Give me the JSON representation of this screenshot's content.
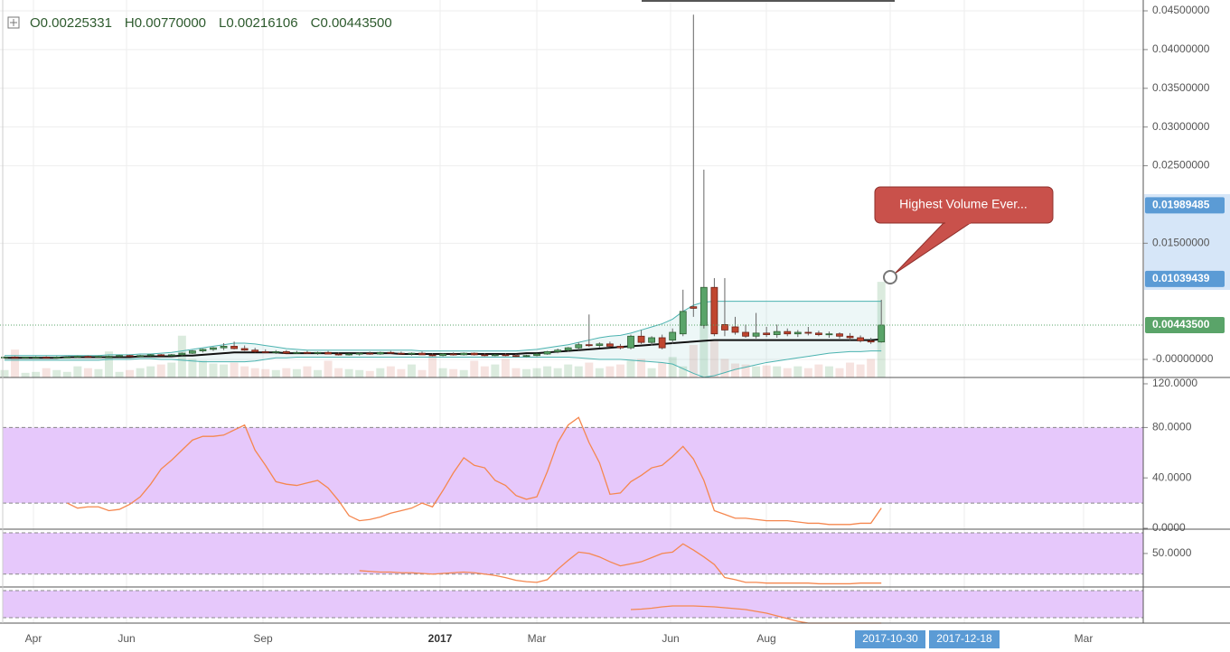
{
  "chart_data": {
    "type": "candlestick",
    "legend": {
      "labels": [
        "O",
        "H",
        "L",
        "C"
      ],
      "values": [
        0.00225331,
        0.0077,
        0.00216106,
        0.004435
      ],
      "value_labels": [
        "0.00225331",
        "0.00770000",
        "0.00216106",
        "0.00443500"
      ]
    },
    "ylim": [
      -0.00233,
      0.0464
    ],
    "yticks": [
      {
        "value": 0.045,
        "label": "0.04500000"
      },
      {
        "value": 0.04,
        "label": "0.04000000"
      },
      {
        "value": 0.035,
        "label": "0.03500000"
      },
      {
        "value": 0.03,
        "label": "0.03000000"
      },
      {
        "value": 0.025,
        "label": "0.02500000"
      },
      {
        "value": 0.015,
        "label": "0.01500000"
      },
      {
        "value": 0,
        "label": "-0.00000000"
      }
    ],
    "price_labels": [
      {
        "value": 0.01989485,
        "label": "0.01989485",
        "color": "#5b9bd5"
      },
      {
        "value": 0.01039439,
        "label": "0.01039439",
        "color": "#5b9bd5"
      },
      {
        "value": 0.004435,
        "label": "0.00443500",
        "color": "#5aa469"
      }
    ],
    "annotation": "Highest Volume Ever...",
    "up_color": "#5aa469",
    "down_color": "#c0462f",
    "band_color": "#4bb3b0",
    "ma_color": "#111111",
    "candles": [
      [
        0.0003,
        0.0004,
        0.0002,
        0.0003
      ],
      [
        0.0003,
        0.0004,
        0.0002,
        0.0002
      ],
      [
        0.0002,
        0.0003,
        0.0001,
        0.0003
      ],
      [
        0.0003,
        0.0004,
        0.0002,
        0.0003
      ],
      [
        0.0003,
        0.0004,
        0.0002,
        0.0002
      ],
      [
        0.0002,
        0.0004,
        0.0002,
        0.0003
      ],
      [
        0.0003,
        0.0004,
        0.0002,
        0.0003
      ],
      [
        0.0003,
        0.0005,
        0.0002,
        0.0004
      ],
      [
        0.0004,
        0.0005,
        0.0003,
        0.0003
      ],
      [
        0.0003,
        0.0005,
        0.0003,
        0.0004
      ],
      [
        0.0004,
        0.0005,
        0.0003,
        0.0004
      ],
      [
        0.0004,
        0.0006,
        0.0003,
        0.0005
      ],
      [
        0.0005,
        0.0006,
        0.0004,
        0.0004
      ],
      [
        0.0004,
        0.0006,
        0.0004,
        0.0005
      ],
      [
        0.0005,
        0.0007,
        0.0004,
        0.0006
      ],
      [
        0.0006,
        0.0007,
        0.0005,
        0.0005
      ],
      [
        0.0005,
        0.0007,
        0.0004,
        0.0006
      ],
      [
        0.0006,
        0.0009,
        0.0005,
        0.0008
      ],
      [
        0.0008,
        0.0012,
        0.0007,
        0.0011
      ],
      [
        0.0011,
        0.0014,
        0.0009,
        0.0013
      ],
      [
        0.0013,
        0.0016,
        0.0011,
        0.0015
      ],
      [
        0.0015,
        0.0021,
        0.0012,
        0.0017
      ],
      [
        0.0017,
        0.0023,
        0.0013,
        0.0014
      ],
      [
        0.0014,
        0.0018,
        0.0011,
        0.0012
      ],
      [
        0.0012,
        0.0015,
        0.0009,
        0.001
      ],
      [
        0.001,
        0.0013,
        0.0008,
        0.0009
      ],
      [
        0.0009,
        0.0012,
        0.0007,
        0.001
      ],
      [
        0.001,
        0.0012,
        0.0008,
        0.0008
      ],
      [
        0.0008,
        0.0011,
        0.0007,
        0.0009
      ],
      [
        0.0009,
        0.0011,
        0.0007,
        0.0008
      ],
      [
        0.0008,
        0.001,
        0.0006,
        0.0009
      ],
      [
        0.0009,
        0.0011,
        0.0007,
        0.0007
      ],
      [
        0.0007,
        0.0009,
        0.0005,
        0.0006
      ],
      [
        0.0006,
        0.0008,
        0.0005,
        0.0007
      ],
      [
        0.0007,
        0.0009,
        0.0005,
        0.0008
      ],
      [
        0.0008,
        0.001,
        0.0006,
        0.0007
      ],
      [
        0.0007,
        0.001,
        0.0006,
        0.0009
      ],
      [
        0.0009,
        0.0011,
        0.0007,
        0.0008
      ],
      [
        0.0008,
        0.001,
        0.0006,
        0.0007
      ],
      [
        0.0007,
        0.0009,
        0.0005,
        0.0008
      ],
      [
        0.0008,
        0.001,
        0.0006,
        0.0006
      ],
      [
        0.0006,
        0.0008,
        0.0004,
        0.0005
      ],
      [
        0.0005,
        0.0008,
        0.0004,
        0.0007
      ],
      [
        0.0007,
        0.0009,
        0.0005,
        0.0006
      ],
      [
        0.0006,
        0.0009,
        0.0005,
        0.0008
      ],
      [
        0.0008,
        0.0009,
        0.0005,
        0.0006
      ],
      [
        0.0006,
        0.0008,
        0.0004,
        0.0005
      ],
      [
        0.0005,
        0.0007,
        0.0004,
        0.0006
      ],
      [
        0.0006,
        0.0008,
        0.0004,
        0.0005
      ],
      [
        0.0005,
        0.0007,
        0.0003,
        0.0004
      ],
      [
        0.0004,
        0.0006,
        0.0003,
        0.0005
      ],
      [
        0.0005,
        0.0008,
        0.0004,
        0.0007
      ],
      [
        0.0007,
        0.0011,
        0.0006,
        0.001
      ],
      [
        0.001,
        0.0014,
        0.0008,
        0.0012
      ],
      [
        0.0012,
        0.0016,
        0.001,
        0.0015
      ],
      [
        0.0015,
        0.0022,
        0.0012,
        0.0019
      ],
      [
        0.0019,
        0.0058,
        0.0016,
        0.0018
      ],
      [
        0.0018,
        0.0022,
        0.0015,
        0.002
      ],
      [
        0.002,
        0.0023,
        0.0016,
        0.0017
      ],
      [
        0.0017,
        0.002,
        0.0013,
        0.0015
      ],
      [
        0.0015,
        0.0032,
        0.0013,
        0.003
      ],
      [
        0.003,
        0.0038,
        0.002,
        0.0022
      ],
      [
        0.0022,
        0.003,
        0.0018,
        0.0028
      ],
      [
        0.0028,
        0.0032,
        0.0013,
        0.0015
      ],
      [
        0.0025,
        0.004,
        0.002,
        0.0035
      ],
      [
        0.0033,
        0.009,
        0.003,
        0.0062
      ],
      [
        0.0068,
        0.0445,
        0.0055,
        0.0066
      ],
      [
        0.0044,
        0.0245,
        0.004,
        0.0093
      ],
      [
        0.0093,
        0.0105,
        0.003,
        0.0033
      ],
      [
        0.0045,
        0.0105,
        0.003,
        0.0038
      ],
      [
        0.0042,
        0.0055,
        0.0032,
        0.0035
      ],
      [
        0.0035,
        0.0045,
        0.0028,
        0.003
      ],
      [
        0.003,
        0.006,
        0.0027,
        0.0034
      ],
      [
        0.0034,
        0.0042,
        0.0029,
        0.0032
      ],
      [
        0.0032,
        0.0045,
        0.0028,
        0.0036
      ],
      [
        0.0036,
        0.004,
        0.003,
        0.0033
      ],
      [
        0.0033,
        0.0038,
        0.0029,
        0.0035
      ],
      [
        0.0035,
        0.0042,
        0.0031,
        0.0034
      ],
      [
        0.0034,
        0.0037,
        0.003,
        0.0032
      ],
      [
        0.0032,
        0.0036,
        0.0028,
        0.0033
      ],
      [
        0.0033,
        0.0035,
        0.0027,
        0.003
      ],
      [
        0.003,
        0.0034,
        0.0025,
        0.0028
      ],
      [
        0.0028,
        0.0031,
        0.0022,
        0.0024
      ],
      [
        0.0024,
        0.0028,
        0.002,
        0.00225331
      ],
      [
        0.00225331,
        0.0077,
        0.00216106,
        0.004435
      ]
    ],
    "volume": [
      8,
      30,
      5,
      6,
      10,
      8,
      6,
      12,
      10,
      9,
      28,
      6,
      8,
      10,
      12,
      14,
      16,
      45,
      20,
      18,
      15,
      14,
      16,
      12,
      10,
      9,
      8,
      10,
      9,
      12,
      8,
      18,
      10,
      9,
      8,
      7,
      10,
      12,
      9,
      14,
      8,
      24,
      10,
      9,
      8,
      18,
      12,
      14,
      20,
      10,
      9,
      10,
      12,
      10,
      14,
      12,
      16,
      10,
      12,
      14,
      18,
      20,
      10,
      16,
      22,
      12,
      35,
      60,
      40,
      20,
      15,
      14,
      12,
      13,
      12,
      10,
      12,
      10,
      14,
      12,
      10,
      16,
      14,
      20,
      103
    ],
    "ma": [
      0.0002,
      0.0002,
      0.0002,
      0.0002,
      0.0002,
      0.0002,
      0.0003,
      0.0003,
      0.0003,
      0.0003,
      0.0003,
      0.0003,
      0.0003,
      0.0004,
      0.0004,
      0.0004,
      0.0004,
      0.0005,
      0.0005,
      0.0006,
      0.0007,
      0.0008,
      0.0009,
      0.0009,
      0.0009,
      0.0009,
      0.0009,
      0.0008,
      0.0008,
      0.0008,
      0.0008,
      0.0008,
      0.0008,
      0.0008,
      0.0008,
      0.0008,
      0.0008,
      0.0008,
      0.0007,
      0.0007,
      0.0007,
      0.0007,
      0.0007,
      0.0007,
      0.0007,
      0.0007,
      0.0007,
      0.0007,
      0.0007,
      0.0007,
      0.0008,
      0.0008,
      0.0009,
      0.001,
      0.0011,
      0.0012,
      0.0013,
      0.0014,
      0.0015,
      0.0016,
      0.0017,
      0.0018,
      0.0019,
      0.002,
      0.0021,
      0.0022,
      0.0023,
      0.0024,
      0.0025,
      0.0025,
      0.0025,
      0.0025,
      0.0025,
      0.0025,
      0.0025,
      0.0025,
      0.0025,
      0.0025,
      0.0025,
      0.0025,
      0.0025,
      0.0025,
      0.0025,
      0.0025,
      0.0026
    ],
    "bb_upper": [
      0.0005,
      0.0005,
      0.0005,
      0.0005,
      0.0005,
      0.0005,
      0.0005,
      0.0005,
      0.0005,
      0.0005,
      0.0006,
      0.0006,
      0.0006,
      0.0007,
      0.0007,
      0.0008,
      0.0009,
      0.0011,
      0.0013,
      0.0015,
      0.0017,
      0.0019,
      0.0021,
      0.0021,
      0.002,
      0.0018,
      0.0016,
      0.0014,
      0.0013,
      0.0012,
      0.0012,
      0.0012,
      0.0012,
      0.0012,
      0.0012,
      0.0012,
      0.0012,
      0.0012,
      0.0012,
      0.0012,
      0.0011,
      0.0011,
      0.0011,
      0.0011,
      0.0011,
      0.0011,
      0.0011,
      0.0011,
      0.0011,
      0.0011,
      0.0012,
      0.0013,
      0.0015,
      0.0017,
      0.0019,
      0.0022,
      0.0025,
      0.0028,
      0.003,
      0.0031,
      0.0034,
      0.0038,
      0.0042,
      0.0046,
      0.0052,
      0.0062,
      0.007,
      0.0074,
      0.0075,
      0.0075,
      0.0075,
      0.0075,
      0.0075,
      0.0075,
      0.0075,
      0.0075,
      0.0075,
      0.0075,
      0.0075,
      0.0075,
      0.0075,
      0.0075,
      0.0075,
      0.0075,
      0.0075
    ],
    "bb_lower": [
      -0.0001,
      -0.0001,
      -0.0001,
      -0.0001,
      -0.0001,
      -0.0001,
      -0.0001,
      -0.0001,
      -0.0001,
      -0.0001,
      0.0,
      0.0,
      0.0,
      0.0001,
      0.0001,
      0.0,
      0.0,
      -0.0001,
      -0.0002,
      -0.0003,
      -0.0003,
      -0.0003,
      -0.0003,
      -0.0003,
      -0.0002,
      0.0,
      0.0002,
      0.0002,
      0.0003,
      0.0003,
      0.0003,
      0.0003,
      0.0003,
      0.0003,
      0.0003,
      0.0003,
      0.0003,
      0.0003,
      0.0003,
      0.0003,
      0.0003,
      0.0003,
      0.0003,
      0.0003,
      0.0003,
      0.0003,
      0.0003,
      0.0003,
      0.0003,
      0.0003,
      0.0003,
      0.0003,
      0.0003,
      0.0003,
      0.0003,
      0.0002,
      0.0001,
      0.0,
      0.0,
      0.0,
      -0.0001,
      -0.0002,
      -0.0003,
      -0.0004,
      -0.0006,
      -0.0012,
      -0.0018,
      -0.0023,
      -0.0021,
      -0.0017,
      -0.0013,
      -0.001,
      -0.0007,
      -0.0004,
      -0.0002,
      0.0,
      0.0002,
      0.0004,
      0.0006,
      0.0008,
      0.0009,
      0.001,
      0.001,
      0.0011,
      0.0011
    ],
    "indicators": [
      {
        "ylim": [
          0,
          119
        ],
        "yticks": [
          {
            "value": 120,
            "label": "120.0000"
          },
          {
            "value": 80,
            "label": "80.0000"
          },
          {
            "value": 40,
            "label": "40.0000"
          },
          {
            "value": 0,
            "label": "0.0000"
          }
        ],
        "bands": [
          20,
          80
        ],
        "color": "#f5874f",
        "values": [
          null,
          null,
          null,
          null,
          null,
          null,
          20,
          16,
          17,
          17,
          14,
          15,
          19,
          25,
          35,
          47,
          54,
          62,
          70,
          73,
          73,
          74,
          78,
          82,
          62,
          50,
          37,
          35,
          34,
          36,
          38,
          32,
          22,
          10,
          6,
          7,
          9,
          12,
          14,
          16,
          20,
          17,
          30,
          44,
          56,
          50,
          48,
          38,
          34,
          26,
          23,
          25,
          45,
          68,
          82,
          88,
          68,
          52,
          27,
          28,
          37,
          42,
          48,
          50,
          57,
          65,
          55,
          38,
          14,
          11,
          8,
          8,
          7,
          6,
          6,
          6,
          5,
          4,
          4,
          3,
          3,
          3,
          4,
          4,
          16
        ]
      },
      {
        "ylim": [
          0,
          84
        ],
        "yticks": [
          {
            "value": 50,
            "label": "50.0000"
          }
        ],
        "bands": [
          20,
          80
        ],
        "color": "#f5874f",
        "values": [
          null,
          null,
          null,
          null,
          null,
          null,
          null,
          null,
          null,
          null,
          null,
          null,
          null,
          null,
          null,
          null,
          null,
          null,
          null,
          null,
          null,
          null,
          null,
          null,
          null,
          null,
          null,
          null,
          null,
          null,
          null,
          null,
          null,
          null,
          25,
          24,
          23,
          23,
          22,
          22,
          21,
          20,
          21,
          22,
          23,
          22,
          20,
          18,
          15,
          11,
          9,
          8,
          12,
          27,
          40,
          52,
          50,
          45,
          38,
          32,
          35,
          38,
          44,
          50,
          52,
          64,
          55,
          45,
          34,
          15,
          12,
          8,
          8,
          7,
          7,
          7,
          7,
          7,
          6,
          6,
          6,
          6,
          7,
          7,
          7
        ]
      },
      {
        "ylim": [
          8,
          86
        ],
        "yticks": [],
        "bands": [
          20,
          80
        ],
        "color": "#f5874f",
        "values": [
          null,
          null,
          null,
          null,
          null,
          null,
          null,
          null,
          null,
          null,
          null,
          null,
          null,
          null,
          null,
          null,
          null,
          null,
          null,
          null,
          null,
          null,
          null,
          null,
          null,
          null,
          null,
          null,
          null,
          null,
          null,
          null,
          null,
          null,
          null,
          null,
          null,
          null,
          null,
          null,
          null,
          null,
          null,
          null,
          null,
          null,
          null,
          null,
          null,
          null,
          null,
          null,
          null,
          null,
          null,
          null,
          null,
          null,
          null,
          null,
          38,
          39,
          41,
          44,
          46,
          46,
          46,
          45,
          44,
          42,
          40,
          38,
          34,
          30,
          24,
          18,
          12,
          8,
          8,
          8,
          8,
          8,
          8,
          8,
          8
        ]
      }
    ],
    "x_labels": [
      "Apr",
      "Jun",
      "Sep",
      "2017",
      "Mar",
      "Jun",
      "Aug",
      "2017-10-30",
      "2017-12-18",
      "Mar"
    ]
  }
}
